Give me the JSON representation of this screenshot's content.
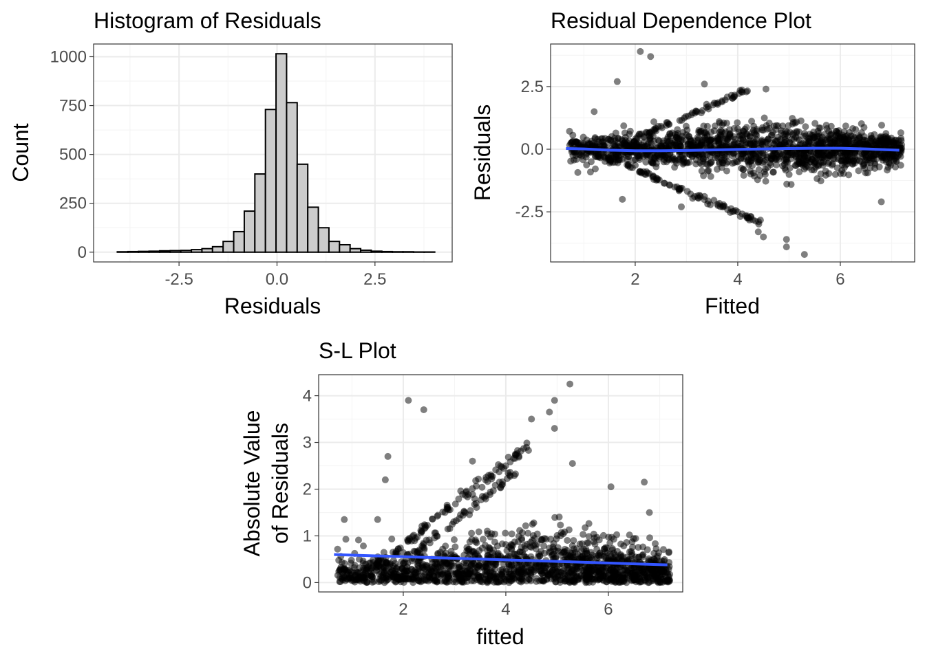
{
  "chart_data": [
    {
      "id": "hist",
      "type": "bar",
      "title": "Histogram of Residuals",
      "xlabel": "Residuals",
      "ylabel": "Count",
      "xlim": [
        -4.68,
        4.47
      ],
      "ylim": [
        -50,
        1065
      ],
      "xticks": [
        -2.5,
        0.0,
        2.5
      ],
      "xtick_labels": [
        "-2.5",
        "0.0",
        "2.5"
      ],
      "yticks": [
        0,
        250,
        500,
        750,
        1000
      ],
      "ytick_labels": [
        "0",
        "250",
        "500",
        "750",
        "1000"
      ],
      "bin_width": 0.27,
      "bin_centers": [
        -3.94,
        -3.67,
        -3.4,
        -3.13,
        -2.86,
        -2.59,
        -2.32,
        -2.05,
        -1.78,
        -1.51,
        -1.24,
        -0.97,
        -0.7,
        -0.43,
        -0.16,
        0.11,
        0.38,
        0.65,
        0.92,
        1.19,
        1.46,
        1.73,
        2.0,
        2.27,
        2.54,
        2.81,
        3.08,
        3.35,
        3.62,
        3.89
      ],
      "values": [
        2,
        3,
        4,
        5,
        7,
        8,
        9,
        13,
        18,
        28,
        55,
        105,
        210,
        400,
        730,
        1015,
        765,
        450,
        230,
        125,
        55,
        38,
        18,
        10,
        5,
        3,
        2,
        2,
        1,
        1
      ],
      "fill": "#cccccc",
      "grid": true
    },
    {
      "id": "rdp",
      "type": "scatter",
      "title": "Residual Dependence Plot",
      "xlabel": "Fitted",
      "ylabel": "Residuals",
      "xlim": [
        0.35,
        7.45
      ],
      "ylim": [
        -4.5,
        4.2
      ],
      "xticks": [
        2,
        4,
        6
      ],
      "xtick_labels": [
        "2",
        "4",
        "6"
      ],
      "yticks": [
        -2.5,
        0.0,
        2.5
      ],
      "ytick_labels": [
        "-2.5",
        "0.0",
        "2.5"
      ],
      "point_color": "#000000",
      "point_opacity": 0.5,
      "smooth_color": "#3355ff",
      "smooth": {
        "x": [
          0.65,
          1.0,
          1.5,
          2.0,
          2.5,
          3.0,
          3.5,
          4.0,
          4.5,
          5.0,
          5.5,
          6.0,
          6.5,
          7.15
        ],
        "y": [
          0.03,
          0.01,
          -0.04,
          -0.06,
          -0.06,
          -0.05,
          -0.03,
          -0.01,
          0.01,
          0.03,
          0.04,
          0.04,
          0.01,
          -0.04
        ]
      },
      "outliers": [
        [
          2.1,
          3.9
        ],
        [
          2.3,
          3.7
        ],
        [
          1.65,
          2.7
        ],
        [
          5.3,
          -4.2
        ],
        [
          4.95,
          -3.9
        ],
        [
          4.95,
          -3.6
        ],
        [
          4.5,
          -3.5
        ],
        [
          4.4,
          -3.3
        ],
        [
          3.35,
          2.6
        ],
        [
          4.55,
          2.4
        ],
        [
          1.75,
          -2.0
        ],
        [
          6.8,
          -2.1
        ],
        [
          1.2,
          1.5
        ],
        [
          2.9,
          -2.3
        ]
      ],
      "grid": true
    },
    {
      "id": "sl",
      "type": "scatter",
      "title": "S-L Plot",
      "xlabel": "fitted",
      "ylabel": "Absolute Value\nof Residuals",
      "ylabel_lines": [
        "Absolute Value",
        "of Residuals"
      ],
      "xlim": [
        0.35,
        7.45
      ],
      "ylim": [
        -0.2,
        4.45
      ],
      "xticks": [
        2,
        4,
        6
      ],
      "xtick_labels": [
        "2",
        "4",
        "6"
      ],
      "yticks": [
        0,
        1,
        2,
        3,
        4
      ],
      "ytick_labels": [
        "0",
        "1",
        "2",
        "3",
        "4"
      ],
      "point_color": "#000000",
      "point_opacity": 0.5,
      "smooth_color": "#3355ff",
      "smooth": {
        "x": [
          0.65,
          7.15
        ],
        "y": [
          0.6,
          0.38
        ]
      },
      "outliers": [
        [
          5.25,
          4.25
        ],
        [
          2.1,
          3.9
        ],
        [
          4.95,
          3.9
        ],
        [
          2.4,
          3.7
        ],
        [
          4.85,
          3.65
        ],
        [
          4.5,
          3.5
        ],
        [
          4.95,
          3.3
        ],
        [
          1.7,
          2.7
        ],
        [
          3.35,
          2.6
        ],
        [
          5.3,
          2.55
        ],
        [
          1.65,
          2.2
        ],
        [
          6.7,
          2.15
        ],
        [
          6.05,
          2.05
        ],
        [
          0.85,
          1.35
        ],
        [
          1.5,
          1.35
        ],
        [
          6.8,
          1.5
        ]
      ],
      "grid": true
    }
  ]
}
